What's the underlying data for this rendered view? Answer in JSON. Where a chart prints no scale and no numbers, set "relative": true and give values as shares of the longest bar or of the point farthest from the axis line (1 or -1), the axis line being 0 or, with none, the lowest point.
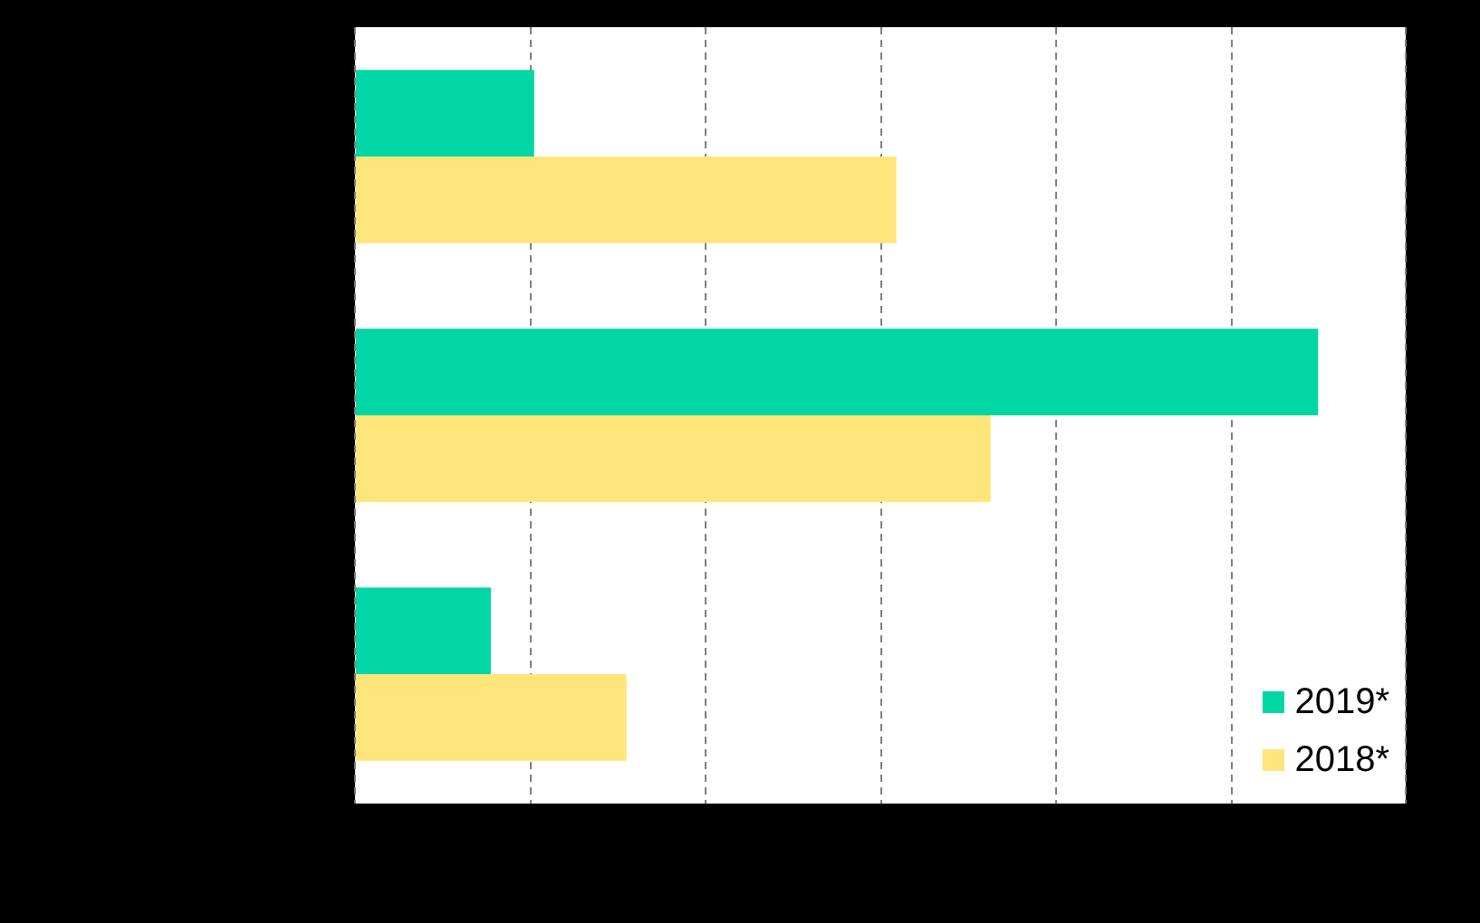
{
  "chart_data": {
    "type": "bar",
    "orientation": "horizontal",
    "relative": true,
    "categories": [
      null,
      null,
      null
    ],
    "grid": "x",
    "line_style": "dashed",
    "legend": "bottom right",
    "series": [
      {
        "name": "2019*",
        "color": "#00d7a4",
        "values": [
          0.186,
          1,
          0.141
        ]
      },
      {
        "name": "2018*",
        "color": "#ffe67a",
        "values": [
          0.562,
          0.66,
          0.282
        ]
      }
    ]
  }
}
